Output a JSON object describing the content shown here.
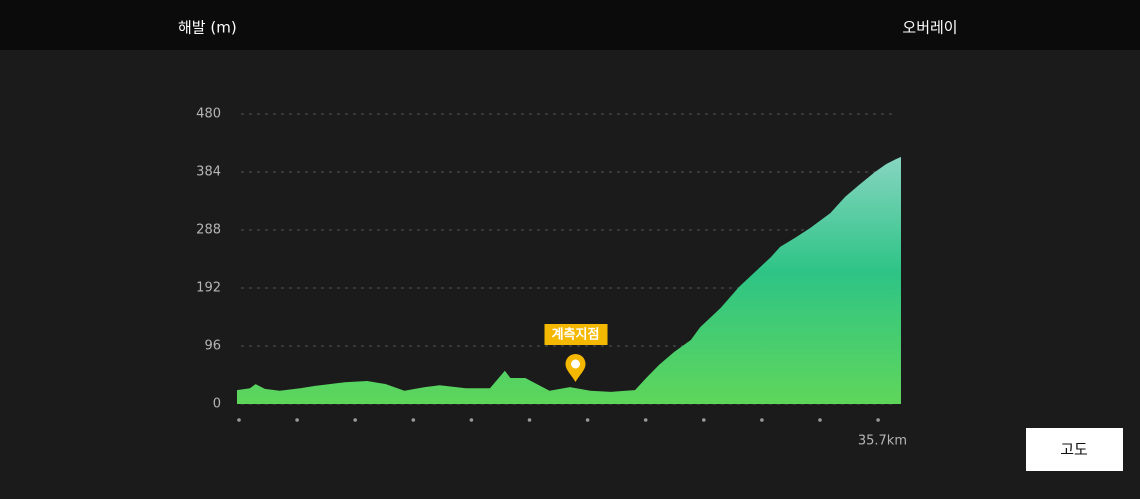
{
  "chart_data": {
    "type": "area",
    "y_label": "해발 (m)",
    "overlay_label": "오버레이",
    "button_label": "고도",
    "x": [
      0,
      0.7,
      1.0,
      1.5,
      2.3,
      3.4,
      4.2,
      5.8,
      7.0,
      8.0,
      9.0,
      10.1,
      10.9,
      12.3,
      13.6,
      14.4,
      14.7,
      15.5,
      16.8,
      17.9,
      19.0,
      20.1,
      20.9,
      21.4,
      22.0,
      22.7,
      23.5,
      24.4,
      24.9,
      26.0,
      27.0,
      27.9,
      28.7,
      29.2,
      30.0,
      30.8,
      31.9,
      32.7,
      33.5,
      34.3,
      34.9,
      35.4,
      35.7
    ],
    "values": [
      23,
      26,
      33,
      25,
      22,
      26,
      30,
      36,
      38,
      33,
      22,
      28,
      31,
      26,
      26,
      55,
      43,
      43,
      22,
      28,
      22,
      20,
      22,
      23,
      43,
      65,
      86,
      106,
      127,
      159,
      194,
      220,
      243,
      260,
      275,
      291,
      316,
      343,
      364,
      384,
      397,
      405,
      409
    ],
    "xlim": [
      0,
      35.7
    ],
    "xticks": [
      {
        "value": 35.7,
        "label": "35.7km"
      }
    ],
    "ylim": [
      0,
      480
    ],
    "yticks": [
      0,
      96,
      192,
      288,
      384,
      480
    ],
    "grid": true,
    "colors": [
      "#8cd6c4",
      "#2ec486",
      "#5fd65a"
    ],
    "marker": {
      "label": "계측지점",
      "x": 18.2,
      "color": "#f5b800"
    }
  }
}
